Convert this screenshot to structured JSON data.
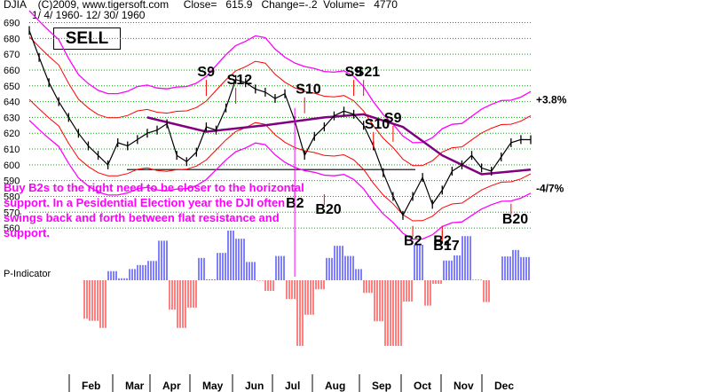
{
  "header": {
    "line1": "DJIA    (C)2009, www.tigersoft.com     Close=   615.9   Change=-.2  Volume=   4770",
    "line2": "1/ 4/ 1960- 12/ 30/ 1960"
  },
  "signal": "SELL",
  "note": "Buy B2s to the right need to be closer to the horizontal support. In a Pesidential Election year the DJI often swings back and forth between flat resistance and support.",
  "indicator_label": "P-Indicator",
  "colors": {
    "price": "#000000",
    "upper_band": "#ff00ff",
    "lower_band": "#ff00ff",
    "inner_bands": "#ff0000",
    "moving_avg": "#800080",
    "grid": "#00aa00",
    "support": "#000000",
    "annotation": "#ff0000",
    "indicator_pos": "#0000ff",
    "indicator_neg": "#ff0000",
    "note": "#ff00ff"
  },
  "chart_data": {
    "type": "line",
    "title": "DJIA",
    "y_ticks": [
      690,
      680,
      670,
      660,
      650,
      640,
      630,
      620,
      610,
      600,
      590,
      580,
      570,
      560
    ],
    "ylim": [
      555,
      692
    ],
    "x_ticks": [
      "Feb",
      "Mar",
      "Apr",
      "May",
      "Jun",
      "Jul",
      "Aug",
      "Sep",
      "Oct",
      "Nov",
      "Dec"
    ],
    "band_labels": [
      "+3.8%",
      "-4/7%"
    ],
    "support_level": 597,
    "series": [
      {
        "key": "close",
        "x": [
          "Jan 4",
          "Jan 11",
          "Jan 18",
          "Jan 25",
          "Feb 1",
          "Feb 8",
          "Feb 15",
          "Feb 22",
          "Feb 29",
          "Mar 7",
          "Mar 14",
          "Mar 21",
          "Mar 28",
          "Apr 4",
          "Apr 11",
          "Apr 18",
          "Apr 25",
          "May 2",
          "May 9",
          "May 16",
          "May 23",
          "May 31",
          "Jun 6",
          "Jun 13",
          "Jun 20",
          "Jun 27",
          "Jul 5",
          "Jul 11",
          "Jul 18",
          "Jul 25",
          "Aug 1",
          "Aug 8",
          "Aug 15",
          "Aug 22",
          "Aug 29",
          "Sep 6",
          "Sep 12",
          "Sep 19",
          "Sep 26",
          "Oct 3",
          "Oct 10",
          "Oct 17",
          "Oct 24",
          "Oct 31",
          "Nov 7",
          "Nov 14",
          "Nov 21",
          "Nov 28",
          "Dec 5",
          "Dec 12",
          "Dec 19",
          "Dec 30"
        ],
        "values": [
          685,
          668,
          652,
          640,
          630,
          620,
          612,
          606,
          600,
          614,
          612,
          616,
          620,
          622,
          626,
          606,
          602,
          608,
          624,
          622,
          636,
          654,
          652,
          648,
          646,
          642,
          645,
          628,
          606,
          618,
          624,
          631,
          634,
          632,
          625,
          612,
          595,
          580,
          568,
          580,
          592,
          575,
          584,
          596,
          600,
          606,
          598,
          596,
          605,
          614,
          616,
          615.9
        ]
      },
      {
        "key": "moving_avg",
        "x": [
          "Jan 4",
          "Feb 15",
          "Mar 28",
          "May 9",
          "Jun 20",
          "Aug 1",
          "Aug 29",
          "Sep 26",
          "Oct 24",
          "Nov 21",
          "Dec 30"
        ],
        "values": [
          null,
          null,
          630,
          621,
          625,
          630,
          632,
          624,
          606,
          594,
          597
        ]
      }
    ],
    "signals": [
      {
        "label": "S9",
        "x": "May 9",
        "y": 656
      },
      {
        "label": "S12",
        "x": "May 31",
        "y": 651
      },
      {
        "label": "S10",
        "x": "Jul 18",
        "y": 645
      },
      {
        "label": "S9",
        "x": "Aug 22",
        "y": 656
      },
      {
        "label": "S21",
        "x": "Aug 29",
        "y": 656
      },
      {
        "label": "S10",
        "x": "Sep 6",
        "y": 623
      },
      {
        "label": "S9",
        "x": "Sep 19",
        "y": 627
      },
      {
        "label": "B2",
        "x": "Jul 11",
        "y": 573
      },
      {
        "label": "B20",
        "x": "Aug 1",
        "y": 569
      },
      {
        "label": "B2",
        "x": "Oct 3",
        "y": 549
      },
      {
        "label": "B2",
        "x": "Oct 24",
        "y": 549
      },
      {
        "label": "B17",
        "x": "Oct 24",
        "y": 546
      },
      {
        "label": "B20",
        "x": "Dec 12",
        "y": 563
      }
    ]
  }
}
